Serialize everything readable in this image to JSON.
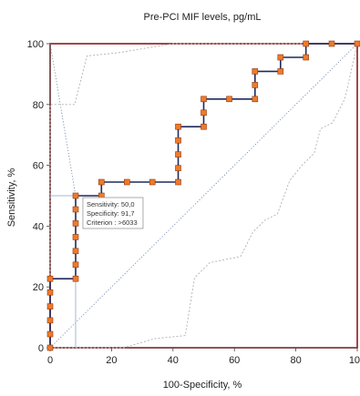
{
  "chart_data": {
    "type": "line",
    "title": "Pre-PCI MIF levels, pg/mL",
    "xlabel": "100-Specificity, %",
    "ylabel": "Sensitivity, %",
    "xlim": [
      0,
      100
    ],
    "ylim": [
      0,
      100
    ],
    "x_ticks": [
      0,
      20,
      40,
      60,
      80,
      100
    ],
    "y_ticks": [
      0,
      20,
      40,
      60,
      80,
      100
    ],
    "grid": false,
    "legend": "none",
    "series": [
      {
        "kind": "roc-step",
        "points": [
          [
            0,
            0
          ],
          [
            0,
            4.5
          ],
          [
            0,
            9
          ],
          [
            0,
            13.6
          ],
          [
            0,
            18.2
          ],
          [
            0,
            22.7
          ],
          [
            8.3,
            22.7
          ],
          [
            8.3,
            27.3
          ],
          [
            8.3,
            31.8
          ],
          [
            8.3,
            36.4
          ],
          [
            8.3,
            40.9
          ],
          [
            8.3,
            45.5
          ],
          [
            8.3,
            50
          ],
          [
            16.7,
            50
          ],
          [
            16.7,
            54.5
          ],
          [
            25,
            54.5
          ],
          [
            33.3,
            54.5
          ],
          [
            41.7,
            54.5
          ],
          [
            41.7,
            59.1
          ],
          [
            41.7,
            63.6
          ],
          [
            41.7,
            68.2
          ],
          [
            41.7,
            72.7
          ],
          [
            50,
            72.7
          ],
          [
            50,
            77.3
          ],
          [
            50,
            81.8
          ],
          [
            58.3,
            81.8
          ],
          [
            66.7,
            81.8
          ],
          [
            66.7,
            86.4
          ],
          [
            66.7,
            90.9
          ],
          [
            75,
            90.9
          ],
          [
            75,
            95.5
          ],
          [
            83.3,
            95.5
          ],
          [
            83.3,
            100
          ],
          [
            91.7,
            100
          ],
          [
            100,
            100
          ]
        ]
      },
      {
        "kind": "ci-upper",
        "points": [
          [
            0,
            0
          ],
          [
            0,
            80
          ],
          [
            8,
            80
          ],
          [
            10,
            88
          ],
          [
            12,
            96
          ],
          [
            22,
            97
          ],
          [
            40,
            100
          ],
          [
            100,
            100
          ]
        ]
      },
      {
        "kind": "ci-lower",
        "points": [
          [
            0,
            0
          ],
          [
            24,
            0
          ],
          [
            34,
            3
          ],
          [
            44,
            4
          ],
          [
            47,
            23
          ],
          [
            52,
            28
          ],
          [
            62,
            30
          ],
          [
            66,
            38
          ],
          [
            70,
            42
          ],
          [
            74,
            44
          ],
          [
            78,
            55
          ],
          [
            82,
            60
          ],
          [
            86,
            64
          ],
          [
            88,
            72
          ],
          [
            92,
            74
          ],
          [
            96,
            82
          ],
          [
            100,
            100
          ]
        ]
      }
    ],
    "reference_line": [
      [
        0,
        0
      ],
      [
        100,
        100
      ]
    ],
    "tangent_line": [
      [
        0,
        100
      ],
      [
        8.3,
        50
      ]
    ],
    "cutoff": {
      "x": 8.3,
      "y": 50
    },
    "annotation": [
      "Sensitivity: 50,0",
      "Specificity: 91,7",
      "Criterion : >6033"
    ],
    "colors": {
      "frame": "#8b1a1a",
      "curve": "#1f2a5e",
      "marker": "#f07a2a",
      "marker_edge": "#8b3a10",
      "ci": "#b0b0b0",
      "reference": "#6a7fa8",
      "cutoff_line": "#9fb8d9"
    }
  }
}
